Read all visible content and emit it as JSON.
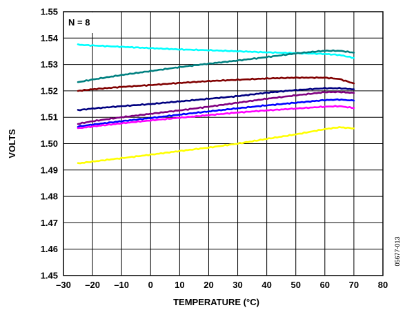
{
  "chart_data": {
    "type": "line",
    "title": "",
    "xlabel": "TEMPERATURE (°C)",
    "ylabel": "VOLTS",
    "annotation": "N = 8",
    "figure_id": "05677-013",
    "xlim": [
      -30,
      80
    ],
    "ylim": [
      1.45,
      1.55
    ],
    "grid": true,
    "x_ticks": [
      -30,
      -20,
      -10,
      0,
      10,
      20,
      30,
      40,
      50,
      60,
      70,
      80
    ],
    "x_tick_labels": [
      "–30",
      "–20",
      "–10",
      "0",
      "10",
      "20",
      "30",
      "40",
      "50",
      "60",
      "70",
      "80"
    ],
    "y_ticks": [
      1.45,
      1.46,
      1.47,
      1.48,
      1.49,
      1.5,
      1.51,
      1.52,
      1.53,
      1.54,
      1.55
    ],
    "y_tick_labels": [
      "1.45",
      "1.46",
      "1.47",
      "1.48",
      "1.49",
      "1.50",
      "1.51",
      "1.52",
      "1.53",
      "1.54",
      "1.55"
    ],
    "x": [
      -25,
      -20,
      -10,
      0,
      10,
      20,
      30,
      40,
      50,
      60,
      65,
      70
    ],
    "series": [
      {
        "color": "#00ffff",
        "values": [
          1.5375,
          1.5372,
          1.5367,
          1.5362,
          1.5357,
          1.5354,
          1.535,
          1.5346,
          1.5343,
          1.534,
          1.5336,
          1.5325
        ]
      },
      {
        "color": "#008080",
        "values": [
          1.5233,
          1.5243,
          1.526,
          1.5275,
          1.529,
          1.5303,
          1.5315,
          1.5328,
          1.5342,
          1.5352,
          1.5352,
          1.5345
        ]
      },
      {
        "color": "#800000",
        "values": [
          1.52,
          1.5206,
          1.5215,
          1.5222,
          1.523,
          1.5237,
          1.5242,
          1.5247,
          1.525,
          1.525,
          1.5245,
          1.5228
        ]
      },
      {
        "color": "#000080",
        "values": [
          1.5127,
          1.5133,
          1.5142,
          1.515,
          1.516,
          1.517,
          1.518,
          1.5193,
          1.5203,
          1.521,
          1.521,
          1.5206
        ]
      },
      {
        "color": "#800080",
        "values": [
          1.5075,
          1.5085,
          1.51,
          1.5113,
          1.5126,
          1.514,
          1.5155,
          1.517,
          1.5183,
          1.5195,
          1.5196,
          1.5192
        ]
      },
      {
        "color": "#0000ff",
        "values": [
          1.5065,
          1.5072,
          1.5085,
          1.5097,
          1.511,
          1.5122,
          1.5134,
          1.5145,
          1.5155,
          1.5165,
          1.5167,
          1.5163
        ]
      },
      {
        "color": "#ff00ff",
        "values": [
          1.5058,
          1.5065,
          1.5077,
          1.5088,
          1.5098,
          1.5108,
          1.5118,
          1.5126,
          1.5133,
          1.514,
          1.5142,
          1.5135
        ]
      },
      {
        "color": "#ffff00",
        "values": [
          1.4925,
          1.4932,
          1.4945,
          1.4958,
          1.4972,
          1.4985,
          1.5,
          1.5018,
          1.5035,
          1.5055,
          1.5062,
          1.5058
        ]
      }
    ]
  }
}
